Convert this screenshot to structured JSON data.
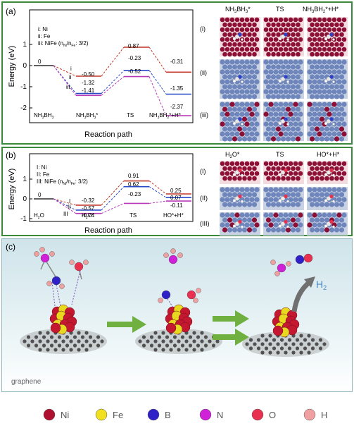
{
  "panel_a": {
    "tag": "(a)",
    "legend": [
      "i: Ni",
      "ii: Fe",
      "iii: NiFe (n",
      "Ni",
      "/n",
      "Fe",
      ": 3/2)"
    ],
    "ylabel": "Energy (eV)",
    "xlabel": "Reaction path",
    "yticks": [
      "1",
      "0",
      "-1",
      "-2"
    ],
    "states": [
      "NH3BH3",
      "NH3BH3*",
      "TS",
      "NH3BH2*+H*"
    ],
    "series": [
      {
        "key": "i",
        "color": "#c0392b",
        "values": [
          0,
          -0.5,
          0.87,
          -0.31
        ]
      },
      {
        "key": "ii",
        "color": "#2848c8",
        "values": [
          0,
          -1.32,
          -0.23,
          -1.35
        ]
      },
      {
        "key": "iii",
        "color": "#b83ab8",
        "values": [
          0,
          -1.41,
          -0.52,
          -2.37
        ]
      }
    ],
    "labels": {
      "start": "0",
      "ads": [
        "-0.50",
        "-1.32",
        "-1.41"
      ],
      "ts": [
        "0.87",
        "-0.23",
        "-0.52"
      ],
      "fs": [
        "-0.31",
        "-1.35",
        "-2.37"
      ],
      "roman": [
        "i",
        "ii",
        "iii"
      ]
    },
    "img_cols": [
      "NH3BH3*",
      "TS",
      "NH3BH2*+H*"
    ],
    "img_rows": [
      "(i)",
      "(ii)",
      "(iii)"
    ]
  },
  "panel_b": {
    "tag": "(b)",
    "legend": [
      "I: Ni",
      "II: Fe",
      "III: NiFe (n",
      "Ni",
      "/n",
      "Fe",
      ": 3/2)"
    ],
    "ylabel": "Energy (eV)",
    "xlabel": "Reaction path",
    "yticks": [
      "1",
      "0",
      "-1"
    ],
    "states": [
      "H2O",
      "H2O*",
      "TS",
      "HO*+H*"
    ],
    "series": [
      {
        "key": "I",
        "color": "#c0392b",
        "values": [
          0,
          -0.32,
          0.91,
          0.25
        ]
      },
      {
        "key": "II",
        "color": "#2848c8",
        "values": [
          0,
          -0.57,
          0.62,
          0.07
        ]
      },
      {
        "key": "III",
        "color": "#b83ab8",
        "values": [
          0,
          -0.74,
          -0.23,
          -0.11
        ]
      }
    ],
    "labels": {
      "start": "0",
      "ads": [
        "-0.32",
        "-0.57",
        "-0.74"
      ],
      "ts": [
        "0.91",
        "0.62",
        "-0.23"
      ],
      "fs": [
        "0.25",
        "0.07",
        "-0.11"
      ],
      "roman": [
        "I",
        "II",
        "III"
      ]
    },
    "img_cols": [
      "H2O*",
      "TS",
      "HO*+H*"
    ],
    "img_rows": [
      "(I)",
      "(II)",
      "(III)"
    ]
  },
  "panel_c": {
    "tag": "(c)",
    "graphene_label": "graphene",
    "h2_label": "H2"
  },
  "atom_legend": [
    {
      "label": "Ni",
      "color": "#b01030"
    },
    {
      "label": "Fe",
      "color": "#f0e020"
    },
    {
      "label": "B",
      "color": "#3020c8"
    },
    {
      "label": "N",
      "color": "#d020d8"
    },
    {
      "label": "O",
      "color": "#e83050"
    },
    {
      "label": "H",
      "color": "#f0a0a0"
    }
  ]
}
